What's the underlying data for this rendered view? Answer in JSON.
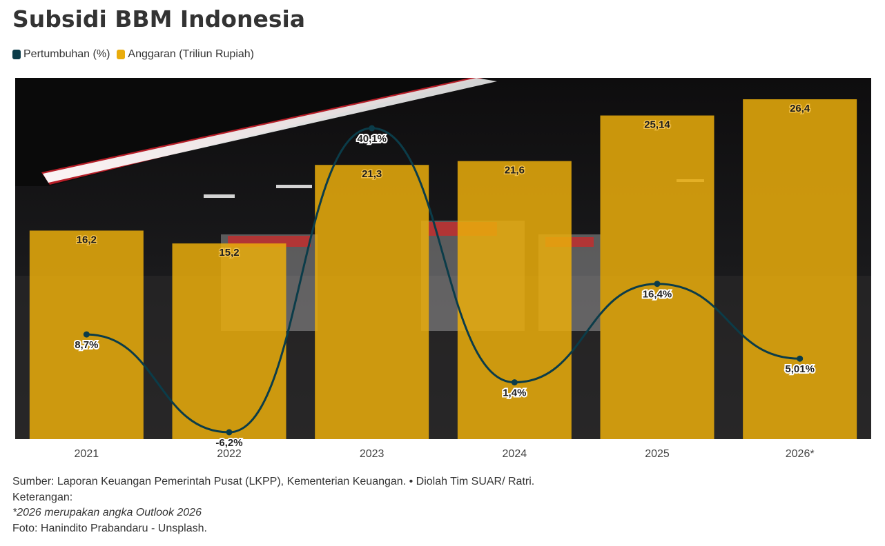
{
  "title": "Subsidi BBM Indonesia",
  "legend": [
    {
      "label": "Pertumbuhan (%)",
      "color": "#0b3c49"
    },
    {
      "label": "Anggaran (Triliun Rupiah)",
      "color": "#e9ac0c"
    }
  ],
  "footer": {
    "source": "Sumber: Laporan Keuangan Pemerintah Pusat (LKPP), Kementerian Keuangan. • Diolah Tim SUAR/ Ratri.",
    "note_label": "Keterangan:",
    "note": "*2026 merupakan angka Outlook 2026",
    "photo": "Foto: Hanindito Prabandaru - Unsplash."
  },
  "chart_data": {
    "type": "bar",
    "categories": [
      "2021",
      "2022",
      "2023",
      "2024",
      "2025",
      "2026*"
    ],
    "series": [
      {
        "name": "Anggaran (Triliun Rupiah)",
        "type": "bar",
        "values": [
          16.2,
          15.2,
          21.3,
          21.6,
          25.14,
          26.4
        ],
        "labels": [
          "16,2",
          "15,2",
          "21,3",
          "21,6",
          "25,14",
          "26,4"
        ],
        "color": "#e9ac0c"
      },
      {
        "name": "Pertumbuhan (%)",
        "type": "line",
        "values": [
          8.7,
          -6.2,
          40.1,
          1.4,
          16.4,
          5.01
        ],
        "labels": [
          "8,7%",
          "-6,2%",
          "40,1%",
          "1,4%",
          "16,4%",
          "5,01%"
        ],
        "color": "#0b3c49"
      }
    ],
    "background": "photo of a petrol station at night",
    "grid": false
  }
}
